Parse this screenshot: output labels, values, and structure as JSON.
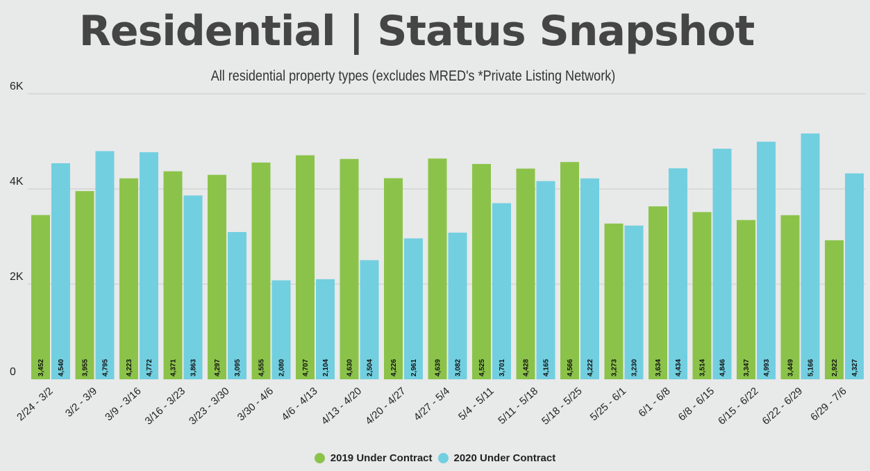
{
  "colors": {
    "series_2019": "#8bc34a",
    "series_2020": "#72cfe0",
    "grid": "#c9caca",
    "label_bg": "#ffffff"
  },
  "chart_data": {
    "type": "bar",
    "title": "Residential | Status Snapshot",
    "subtitle": "All residential property types (excludes MRED's *Private Listing Network)",
    "xlabel": "",
    "ylabel": "",
    "ylim": [
      0,
      6000
    ],
    "yticks": [
      {
        "value": 0,
        "label": "0"
      },
      {
        "value": 2000,
        "label": "2K"
      },
      {
        "value": 4000,
        "label": "4K"
      },
      {
        "value": 6000,
        "label": "6K"
      }
    ],
    "categories": [
      "2/24 - 3/2",
      "3/2 - 3/9",
      "3/9 - 3/16",
      "3/16 - 3/23",
      "3/23 - 3/30",
      "3/30 - 4/6",
      "4/6 - 4/13",
      "4/13 - 4/20",
      "4/20 - 4/27",
      "4/27 - 5/4",
      "5/4 - 5/11",
      "5/11 - 5/18",
      "5/18 - 5/25",
      "5/25 - 6/1",
      "6/1 - 6/8",
      "6/8 - 6/15",
      "6/15 - 6/22",
      "6/22 - 6/29",
      "6/29 - 7/6"
    ],
    "series": [
      {
        "name": "2019 Under Contract",
        "values": [
          3452,
          3955,
          4223,
          4371,
          4297,
          4555,
          4707,
          4630,
          4226,
          4639,
          4525,
          4428,
          4566,
          3273,
          3634,
          3514,
          3347,
          3449,
          2922
        ],
        "labels": [
          "3,452",
          "3,955",
          "4,223",
          "4,371",
          "4,297",
          "4,555",
          "4,707",
          "4,630",
          "4,226",
          "4,639",
          "4,525",
          "4,428",
          "4,566",
          "3,273",
          "3,634",
          "3,514",
          "3,347",
          "3,449",
          "2,922"
        ]
      },
      {
        "name": "2020 Under Contract",
        "values": [
          4540,
          4795,
          4772,
          3863,
          3095,
          2080,
          2104,
          2504,
          2961,
          3082,
          3701,
          4165,
          4222,
          3230,
          4434,
          4846,
          4993,
          5166,
          4327
        ],
        "labels": [
          "4,540",
          "4,795",
          "4,772",
          "3,863",
          "3,095",
          "2,080",
          "2,104",
          "2,504",
          "2,961",
          "3,082",
          "3,701",
          "4,165",
          "4,222",
          "3,230",
          "4,434",
          "4,846",
          "4,993",
          "5,166",
          "4,327"
        ]
      }
    ],
    "legend": "bottom-center"
  }
}
